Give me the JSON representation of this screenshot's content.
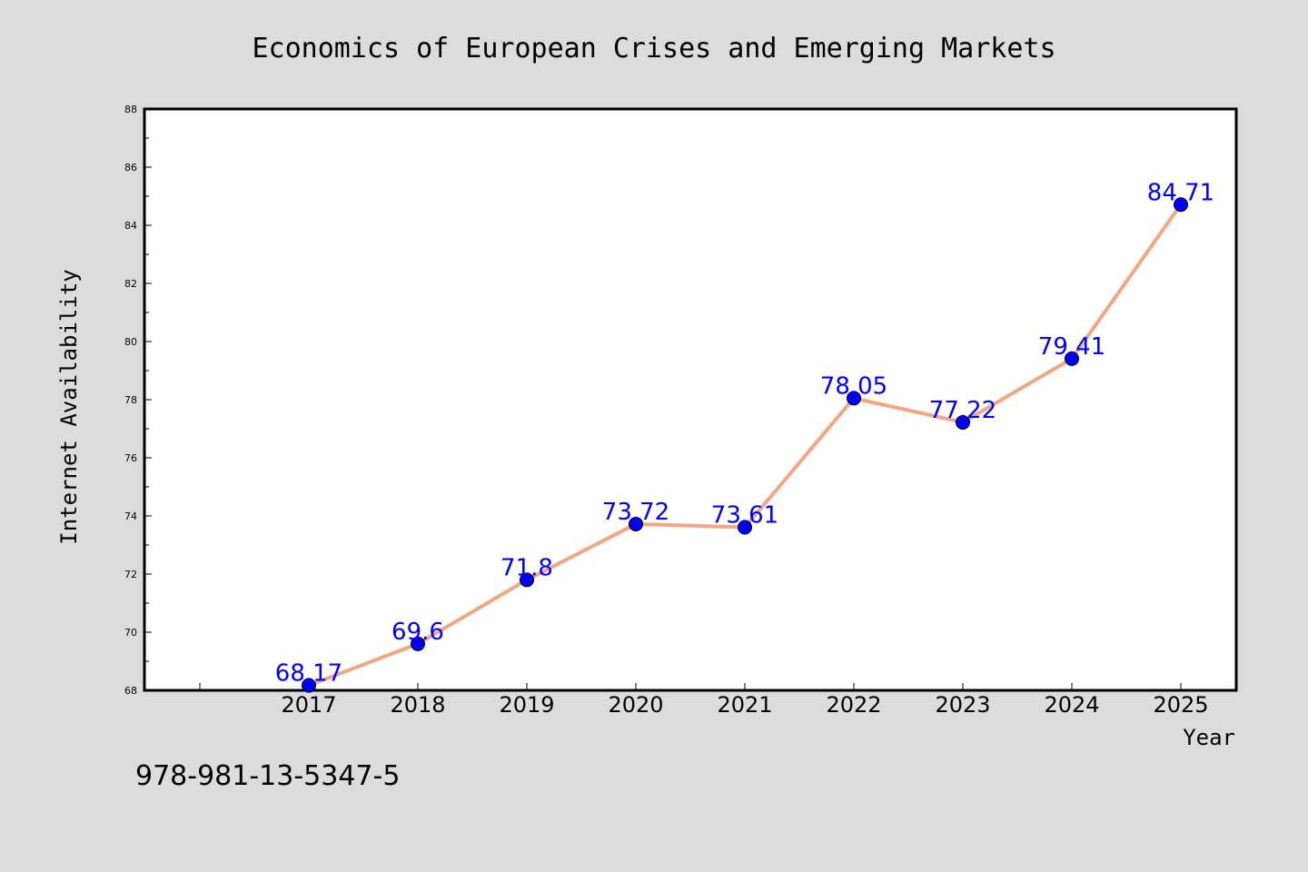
{
  "page": {
    "isbn": "978-981-13-5347-5"
  },
  "chart_data": {
    "type": "line",
    "title": "Economics of European Crises and Emerging Markets",
    "xlabel": "Year",
    "ylabel": "Internet Availability",
    "categories": [
      "2017",
      "2018",
      "2019",
      "2020",
      "2021",
      "2022",
      "2023",
      "2024",
      "2025"
    ],
    "series": [
      {
        "values": [
          68.17,
          69.6,
          71.8,
          73.72,
          73.61,
          78.05,
          77.22,
          79.41,
          84.71
        ],
        "labels": [
          "68.17",
          "69.6",
          "71.8",
          "73.72",
          "73.61",
          "78.05",
          "77.22",
          "79.41",
          "84.71"
        ]
      }
    ],
    "ylim": [
      68,
      88
    ],
    "yticks": [
      "68",
      "70",
      "72",
      "74",
      "76",
      "78",
      "80",
      "82",
      "84",
      "86",
      "88"
    ],
    "grid": false,
    "colors": {
      "line": "#f4a582",
      "marker": "#0000ff",
      "data_label": "#0000ff",
      "background": "#dcdcdc",
      "plot_background": "#ffffff"
    }
  }
}
